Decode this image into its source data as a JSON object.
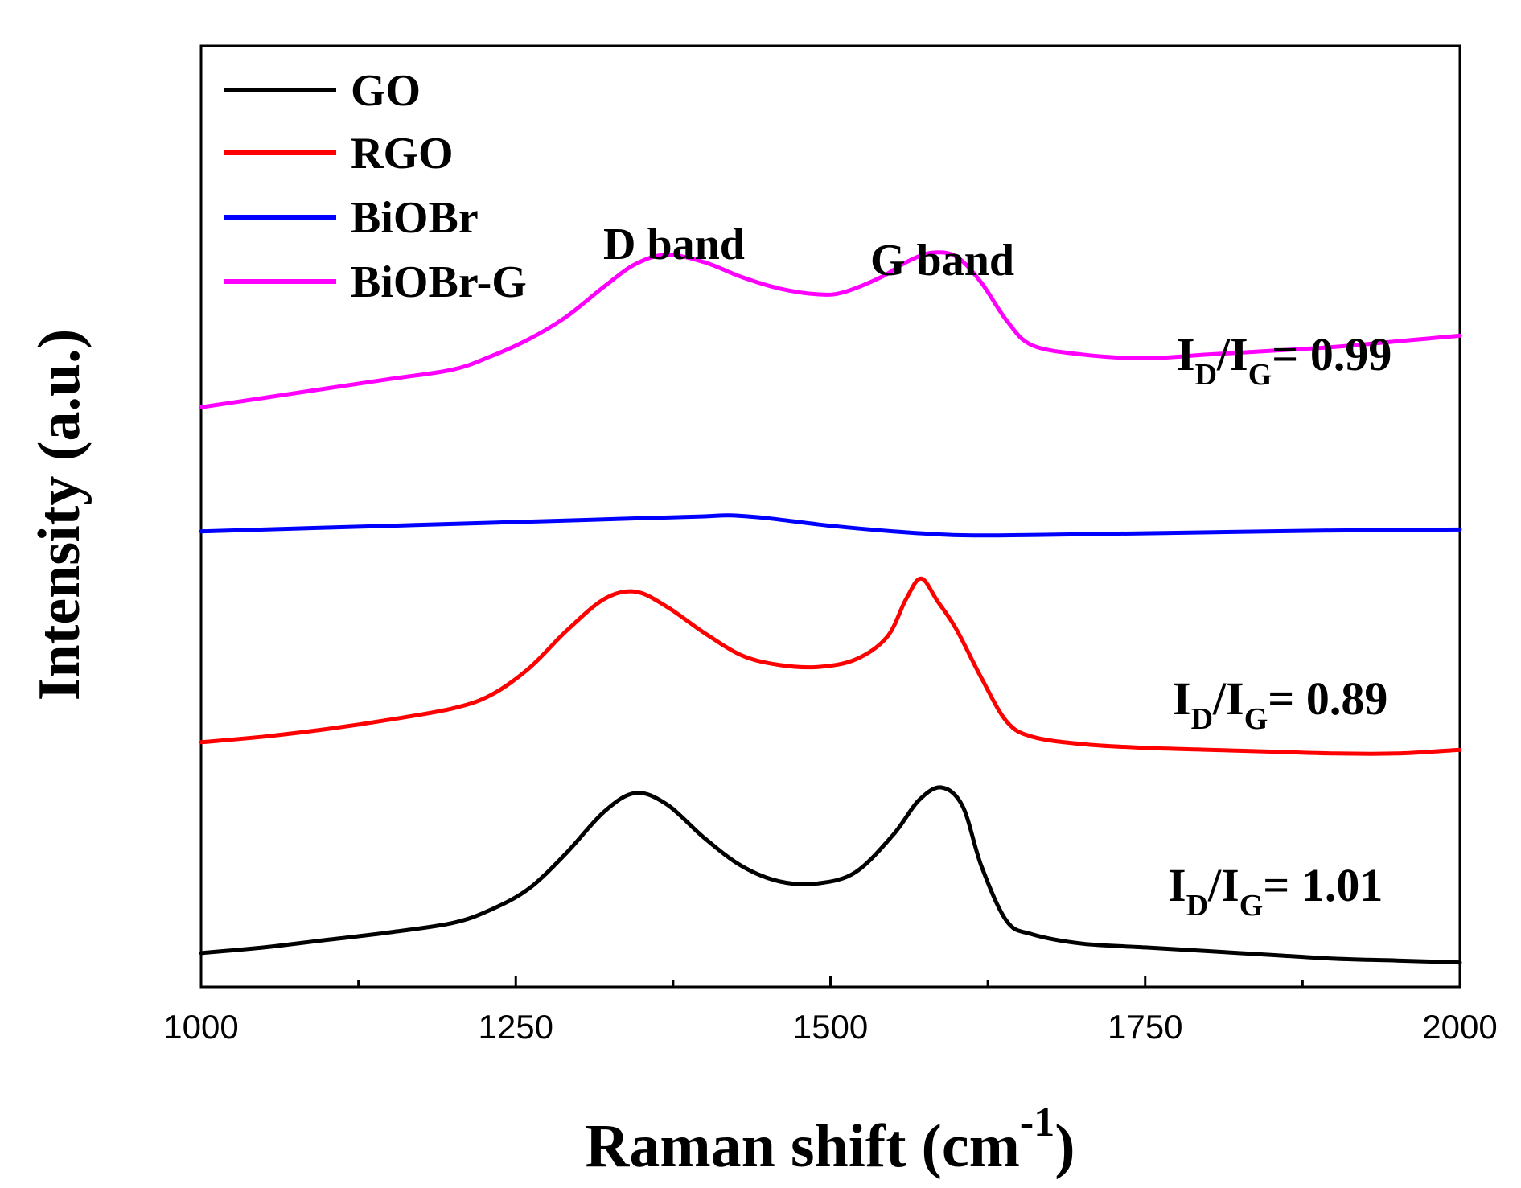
{
  "chart_data": {
    "type": "line",
    "title": "",
    "xlabel": "Raman shift (cm",
    "xlabel_superscript": "-1",
    "xlabel_close": ")",
    "ylabel": "Intensity (a.u.)",
    "xlim": [
      1000,
      2000
    ],
    "ylim": [
      0,
      1
    ],
    "x_ticks": [
      "1000",
      "1250",
      "1500",
      "1750",
      "2000"
    ],
    "y_ticks_shown": false,
    "grid": false,
    "legend_position": "top-left",
    "series": [
      {
        "name": "GO",
        "color": "#000000",
        "x": [
          1000,
          1050,
          1100,
          1150,
          1200,
          1230,
          1260,
          1290,
          1320,
          1345,
          1370,
          1400,
          1430,
          1460,
          1490,
          1520,
          1550,
          1570,
          1588,
          1605,
          1620,
          1640,
          1660,
          1700,
          1750,
          1800,
          1850,
          1900,
          1950,
          2000
        ],
        "y": [
          0.036,
          0.042,
          0.05,
          0.058,
          0.068,
          0.082,
          0.104,
          0.142,
          0.186,
          0.206,
          0.194,
          0.158,
          0.128,
          0.112,
          0.11,
          0.122,
          0.162,
          0.198,
          0.212,
          0.192,
          0.128,
          0.07,
          0.056,
          0.046,
          0.042,
          0.038,
          0.034,
          0.03,
          0.028,
          0.026
        ]
      },
      {
        "name": "RGO",
        "color": "#ff0000",
        "x": [
          1000,
          1050,
          1100,
          1150,
          1200,
          1230,
          1260,
          1290,
          1320,
          1345,
          1370,
          1400,
          1430,
          1460,
          1490,
          1520,
          1545,
          1560,
          1572,
          1585,
          1600,
          1620,
          1640,
          1660,
          1700,
          1750,
          1800,
          1850,
          1900,
          1950,
          2000
        ],
        "y": [
          0.26,
          0.266,
          0.274,
          0.284,
          0.296,
          0.31,
          0.338,
          0.378,
          0.412,
          0.42,
          0.404,
          0.376,
          0.352,
          0.342,
          0.34,
          0.348,
          0.372,
          0.412,
          0.434,
          0.41,
          0.38,
          0.328,
          0.282,
          0.266,
          0.258,
          0.254,
          0.252,
          0.25,
          0.248,
          0.248,
          0.252
        ]
      },
      {
        "name": "BiOBr",
        "color": "#0000ff",
        "x": [
          1000,
          1100,
          1200,
          1300,
          1350,
          1400,
          1420,
          1450,
          1500,
          1550,
          1600,
          1650,
          1700,
          1800,
          1900,
          2000
        ],
        "y": [
          0.484,
          0.488,
          0.492,
          0.496,
          0.498,
          0.5,
          0.501,
          0.498,
          0.49,
          0.484,
          0.48,
          0.48,
          0.481,
          0.483,
          0.485,
          0.486
        ]
      },
      {
        "name": "BiOBr-G",
        "color": "#ff00ff",
        "x": [
          1000,
          1050,
          1100,
          1150,
          1200,
          1230,
          1260,
          1290,
          1320,
          1345,
          1370,
          1400,
          1430,
          1460,
          1490,
          1510,
          1540,
          1560,
          1580,
          1600,
          1620,
          1640,
          1660,
          1700,
          1750,
          1800,
          1850,
          1900,
          1950,
          2000
        ],
        "y": [
          0.616,
          0.626,
          0.636,
          0.646,
          0.656,
          0.67,
          0.688,
          0.712,
          0.744,
          0.768,
          0.778,
          0.77,
          0.754,
          0.742,
          0.736,
          0.738,
          0.754,
          0.77,
          0.78,
          0.776,
          0.748,
          0.708,
          0.682,
          0.672,
          0.668,
          0.672,
          0.676,
          0.68,
          0.686,
          0.692
        ]
      }
    ],
    "annotations": [
      {
        "id": "d-band",
        "text": "D band"
      },
      {
        "id": "g-band",
        "text": "G band"
      }
    ],
    "ratio_labels": [
      {
        "series": "BiOBr-G",
        "prefix": "I",
        "sub1": "D",
        "slash": "/I",
        "sub2": "G",
        "value": "= 0.99"
      },
      {
        "series": "RGO",
        "prefix": "I",
        "sub1": "D",
        "slash": "/I",
        "sub2": "G",
        "value": "= 0.89"
      },
      {
        "series": "GO",
        "prefix": "I",
        "sub1": "D",
        "slash": "/I",
        "sub2": "G",
        "value": "= 1.01"
      }
    ]
  }
}
